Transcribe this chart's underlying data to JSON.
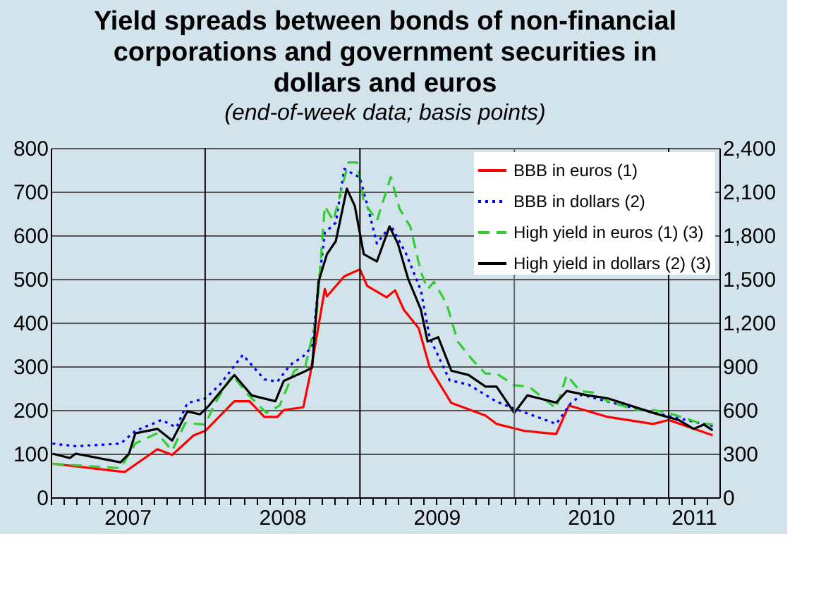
{
  "chart_data": {
    "type": "line",
    "title": "Yield spreads between bonds of non-financial corporations and government securities in dollars and euros",
    "subtitle": "(end-of-week data; basis points)",
    "xlim": [
      "2007-01-01",
      "2011-05-01"
    ],
    "xticks": [
      {
        "value": "2007-01-01",
        "label": null
      },
      {
        "value": "2007-02-01",
        "label": null
      },
      {
        "value": "2007-03-01",
        "label": null
      },
      {
        "value": "2007-04-01",
        "label": null
      },
      {
        "value": "2007-05-01",
        "label": null
      },
      {
        "value": "2007-06-01",
        "label": null
      },
      {
        "value": "2007-07-01",
        "label": "2007"
      },
      {
        "value": "2007-08-01",
        "label": null
      },
      {
        "value": "2007-09-01",
        "label": null
      },
      {
        "value": "2007-10-01",
        "label": null
      },
      {
        "value": "2007-11-01",
        "label": null
      },
      {
        "value": "2007-12-01",
        "label": null
      },
      {
        "value": "2008-01-01",
        "label": null
      },
      {
        "value": "2008-02-01",
        "label": null
      },
      {
        "value": "2008-03-01",
        "label": null
      },
      {
        "value": "2008-04-01",
        "label": null
      },
      {
        "value": "2008-05-01",
        "label": null
      },
      {
        "value": "2008-06-01",
        "label": null
      },
      {
        "value": "2008-07-01",
        "label": "2008"
      },
      {
        "value": "2008-08-01",
        "label": null
      },
      {
        "value": "2008-09-01",
        "label": null
      },
      {
        "value": "2008-10-01",
        "label": null
      },
      {
        "value": "2008-11-01",
        "label": null
      },
      {
        "value": "2008-12-01",
        "label": null
      },
      {
        "value": "2009-01-01",
        "label": null
      },
      {
        "value": "2009-02-01",
        "label": null
      },
      {
        "value": "2009-03-01",
        "label": null
      },
      {
        "value": "2009-04-01",
        "label": null
      },
      {
        "value": "2009-05-01",
        "label": null
      },
      {
        "value": "2009-06-01",
        "label": null
      },
      {
        "value": "2009-07-01",
        "label": "2009"
      },
      {
        "value": "2009-08-01",
        "label": null
      },
      {
        "value": "2009-09-01",
        "label": null
      },
      {
        "value": "2009-10-01",
        "label": null
      },
      {
        "value": "2009-11-01",
        "label": null
      },
      {
        "value": "2009-12-01",
        "label": null
      },
      {
        "value": "2010-01-01",
        "label": null
      },
      {
        "value": "2010-02-01",
        "label": null
      },
      {
        "value": "2010-03-01",
        "label": null
      },
      {
        "value": "2010-04-01",
        "label": null
      },
      {
        "value": "2010-05-01",
        "label": null
      },
      {
        "value": "2010-06-01",
        "label": null
      },
      {
        "value": "2010-07-01",
        "label": "2010"
      },
      {
        "value": "2010-08-01",
        "label": null
      },
      {
        "value": "2010-09-01",
        "label": null
      },
      {
        "value": "2010-10-01",
        "label": null
      },
      {
        "value": "2010-11-01",
        "label": null
      },
      {
        "value": "2010-12-01",
        "label": null
      },
      {
        "value": "2011-01-01",
        "label": null
      },
      {
        "value": "2011-02-01",
        "label": null
      },
      {
        "value": "2011-03-01",
        "label": "2011"
      },
      {
        "value": "2011-04-01",
        "label": null
      }
    ],
    "ylim": [
      0,
      800
    ],
    "yticks": [
      0,
      100,
      200,
      300,
      400,
      500,
      600,
      700,
      800
    ],
    "y2lim": [
      0,
      2400
    ],
    "y2ticks": [
      0,
      300,
      600,
      900,
      {
        "value": 1200,
        "label": "1,200"
      },
      {
        "value": 1500,
        "label": "1,500"
      },
      {
        "value": 1800,
        "label": "1,800"
      },
      {
        "value": 2100,
        "label": "2,100"
      },
      {
        "value": 2400,
        "label": "2,400"
      }
    ],
    "grid": "y",
    "legend": "top right",
    "ref_lines": [
      {
        "axis": "x",
        "value": "2008-01-01",
        "color": "#000000"
      },
      {
        "axis": "x",
        "value": "2009-01-01",
        "color": "#000000"
      },
      {
        "axis": "x",
        "value": "2010-01-01",
        "color": "#666666"
      },
      {
        "axis": "x",
        "value": "2011-01-01",
        "color": "#000000"
      }
    ],
    "series": [
      {
        "name": "BBB in euros (1)",
        "color": "#ff0000",
        "line_style": "solid",
        "x": [
          "2007-01-05",
          "2007-06-25",
          "2007-09-10",
          "2007-10-15",
          "2007-12-05",
          "2008-01-01",
          "2008-03-10",
          "2008-04-15",
          "2008-05-20",
          "2008-06-20",
          "2008-07-05",
          "2008-08-20",
          "2008-09-05",
          "2008-10-10",
          "2008-10-15",
          "2008-11-25",
          "2009-01-01",
          "2009-01-18",
          "2009-03-05",
          "2009-03-25",
          "2009-04-15",
          "2009-05-20",
          "2009-06-15",
          "2009-08-05",
          "2009-10-25",
          "2009-11-20",
          "2010-01-25",
          "2010-04-10",
          "2010-05-10",
          "2010-08-10",
          "2010-11-25",
          "2011-01-01",
          "2011-04-15"
        ],
        "values": [
          77,
          58,
          110,
          97,
          142,
          152,
          220,
          220,
          184,
          184,
          200,
          206,
          280,
          477,
          460,
          506,
          522,
          484,
          458,
          474,
          429,
          387,
          297,
          216,
          187,
          168,
          152,
          145,
          210,
          184,
          168,
          177,
          142
        ]
      },
      {
        "name": "BBB in dollars (2)",
        "color": "#0000ff",
        "line_style": "dotted",
        "x": [
          "2007-01-05",
          "2007-03-01",
          "2007-06-15",
          "2007-07-20",
          "2007-09-20",
          "2007-10-25",
          "2007-11-20",
          "2008-01-01",
          "2008-02-05",
          "2008-03-30",
          "2008-05-20",
          "2008-06-20",
          "2008-07-20",
          "2008-08-20",
          "2008-09-10",
          "2008-09-25",
          "2008-10-10",
          "2008-11-05",
          "2008-11-25",
          "2009-01-01",
          "2009-01-22",
          "2009-02-10",
          "2009-03-15",
          "2009-04-20",
          "2009-05-25",
          "2009-06-15",
          "2009-08-01",
          "2009-09-15",
          "2009-11-20",
          "2010-01-01",
          "2010-04-10",
          "2010-05-15",
          "2010-06-10",
          "2010-08-10",
          "2010-11-25",
          "2011-03-25",
          "2011-04-15"
        ],
        "values": [
          123,
          117,
          123,
          152,
          177,
          160,
          216,
          226,
          258,
          326,
          270,
          265,
          303,
          323,
          345,
          484,
          606,
          629,
          752,
          732,
          655,
          581,
          623,
          558,
          474,
          365,
          268,
          258,
          219,
          203,
          168,
          216,
          235,
          219,
          194,
          168,
          163
        ]
      },
      {
        "name": "High yield in euros (1) (3)",
        "color": "#33cc33",
        "line_style": "dashed",
        "axis": "y2",
        "x": [
          "2007-01-05",
          "2007-06-15",
          "2007-07-20",
          "2007-09-10",
          "2007-10-15",
          "2007-11-15",
          "2008-01-01",
          "2008-01-25",
          "2008-03-05",
          "2008-04-10",
          "2008-05-25",
          "2008-06-25",
          "2008-07-30",
          "2008-08-25",
          "2008-09-20",
          "2008-10-10",
          "2008-10-30",
          "2008-12-05",
          "2008-12-25",
          "2009-01-10",
          "2009-02-10",
          "2009-03-15",
          "2009-04-05",
          "2009-04-30",
          "2009-05-25",
          "2009-06-10",
          "2009-06-25",
          "2009-07-25",
          "2009-08-20",
          "2009-09-25",
          "2009-10-25",
          "2009-11-20",
          "2010-01-01",
          "2010-02-05",
          "2010-04-10",
          "2010-05-05",
          "2010-06-05",
          "2010-07-05",
          "2010-08-10",
          "2010-10-15",
          "2010-11-25",
          "2011-01-01",
          "2011-03-15",
          "2011-04-15"
        ],
        "values": [
          230,
          200,
          370,
          440,
          320,
          510,
          500,
          650,
          840,
          710,
          580,
          630,
          870,
          900,
          1230,
          2000,
          1900,
          2300,
          2300,
          2030,
          1900,
          2200,
          1980,
          1860,
          1550,
          1430,
          1480,
          1330,
          1070,
          940,
          850,
          850,
          770,
          760,
          610,
          840,
          730,
          720,
          660,
          600,
          600,
          580,
          510,
          500
        ]
      },
      {
        "name": "High yield in dollars (2) (3)",
        "color": "#000000",
        "line_style": "solid",
        "axis": "y2",
        "x": [
          "2007-01-05",
          "2007-02-15",
          "2007-03-01",
          "2007-06-15",
          "2007-07-05",
          "2007-07-20",
          "2007-09-10",
          "2007-10-15",
          "2007-11-20",
          "2007-12-20",
          "2008-01-10",
          "2008-03-10",
          "2008-04-20",
          "2008-06-15",
          "2008-07-05",
          "2008-08-20",
          "2008-09-10",
          "2008-09-25",
          "2008-10-15",
          "2008-11-05",
          "2008-12-01",
          "2008-12-20",
          "2009-01-10",
          "2009-02-10",
          "2009-03-12",
          "2009-04-01",
          "2009-04-25",
          "2009-05-25",
          "2009-06-10",
          "2009-07-05",
          "2009-08-05",
          "2009-09-15",
          "2009-10-25",
          "2009-11-20",
          "2010-01-01",
          "2010-02-01",
          "2010-04-10",
          "2010-05-05",
          "2010-06-25",
          "2010-08-10",
          "2010-11-25",
          "2011-01-25",
          "2011-03-01",
          "2011-03-25",
          "2011-04-15"
        ],
        "values": [
          300,
          270,
          300,
          240,
          300,
          440,
          470,
          390,
          590,
          570,
          630,
          840,
          700,
          660,
          800,
          860,
          890,
          1480,
          1670,
          1760,
          2120,
          2000,
          1670,
          1620,
          1860,
          1740,
          1500,
          1290,
          1070,
          1100,
          870,
          840,
          760,
          760,
          580,
          700,
          650,
          730,
          700,
          680,
          580,
          530,
          470,
          500,
          460
        ]
      }
    ]
  }
}
